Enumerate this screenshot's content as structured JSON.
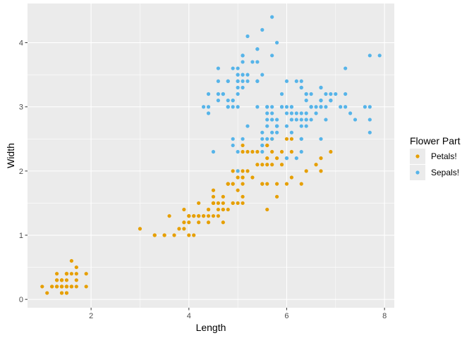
{
  "chart_data": {
    "type": "scatter",
    "xlabel": "Length",
    "ylabel": "Width",
    "xlim": [
      0.7,
      8.2
    ],
    "ylim": [
      -0.13,
      4.61
    ],
    "x_ticks": [
      2,
      4,
      6,
      8
    ],
    "y_ticks": [
      0,
      1,
      2,
      3,
      4
    ],
    "grid": true,
    "legend_position": "right",
    "legend_title": "Flower Part",
    "panel_background": "#ebebeb",
    "series": [
      {
        "name": "Petals!",
        "color": "#E69F00",
        "points": [
          [
            1.4,
            0.2
          ],
          [
            1.4,
            0.2
          ],
          [
            1.3,
            0.2
          ],
          [
            1.5,
            0.2
          ],
          [
            1.4,
            0.2
          ],
          [
            1.7,
            0.4
          ],
          [
            1.4,
            0.3
          ],
          [
            1.5,
            0.2
          ],
          [
            1.4,
            0.2
          ],
          [
            1.5,
            0.1
          ],
          [
            1.5,
            0.2
          ],
          [
            1.6,
            0.2
          ],
          [
            1.4,
            0.1
          ],
          [
            1.1,
            0.1
          ],
          [
            1.2,
            0.2
          ],
          [
            1.5,
            0.4
          ],
          [
            1.3,
            0.4
          ],
          [
            1.4,
            0.3
          ],
          [
            1.7,
            0.3
          ],
          [
            1.5,
            0.3
          ],
          [
            1.7,
            0.2
          ],
          [
            1.5,
            0.4
          ],
          [
            1.0,
            0.2
          ],
          [
            1.7,
            0.5
          ],
          [
            1.9,
            0.2
          ],
          [
            1.6,
            0.2
          ],
          [
            1.6,
            0.4
          ],
          [
            1.5,
            0.2
          ],
          [
            1.4,
            0.2
          ],
          [
            1.6,
            0.2
          ],
          [
            1.6,
            0.2
          ],
          [
            1.5,
            0.4
          ],
          [
            1.5,
            0.1
          ],
          [
            1.4,
            0.2
          ],
          [
            1.5,
            0.2
          ],
          [
            1.2,
            0.2
          ],
          [
            1.3,
            0.2
          ],
          [
            1.4,
            0.1
          ],
          [
            1.3,
            0.2
          ],
          [
            1.5,
            0.2
          ],
          [
            1.3,
            0.3
          ],
          [
            1.3,
            0.3
          ],
          [
            1.3,
            0.2
          ],
          [
            1.6,
            0.6
          ],
          [
            1.9,
            0.4
          ],
          [
            1.4,
            0.3
          ],
          [
            1.6,
            0.2
          ],
          [
            1.4,
            0.2
          ],
          [
            1.5,
            0.2
          ],
          [
            1.4,
            0.2
          ],
          [
            4.7,
            1.4
          ],
          [
            4.5,
            1.5
          ],
          [
            4.9,
            1.5
          ],
          [
            4.0,
            1.3
          ],
          [
            4.6,
            1.5
          ],
          [
            4.5,
            1.3
          ],
          [
            4.7,
            1.6
          ],
          [
            3.3,
            1.0
          ],
          [
            4.6,
            1.3
          ],
          [
            3.9,
            1.4
          ],
          [
            3.5,
            1.0
          ],
          [
            4.2,
            1.5
          ],
          [
            4.0,
            1.0
          ],
          [
            4.7,
            1.4
          ],
          [
            3.6,
            1.3
          ],
          [
            4.4,
            1.4
          ],
          [
            4.5,
            1.5
          ],
          [
            4.1,
            1.0
          ],
          [
            4.5,
            1.5
          ],
          [
            3.9,
            1.1
          ],
          [
            4.8,
            1.8
          ],
          [
            4.0,
            1.3
          ],
          [
            4.9,
            1.5
          ],
          [
            4.7,
            1.2
          ],
          [
            4.3,
            1.3
          ],
          [
            4.4,
            1.4
          ],
          [
            4.8,
            1.4
          ],
          [
            5.0,
            1.7
          ],
          [
            4.5,
            1.5
          ],
          [
            3.5,
            1.0
          ],
          [
            3.8,
            1.1
          ],
          [
            3.7,
            1.0
          ],
          [
            3.9,
            1.2
          ],
          [
            5.1,
            1.6
          ],
          [
            4.5,
            1.5
          ],
          [
            4.5,
            1.6
          ],
          [
            4.7,
            1.5
          ],
          [
            4.4,
            1.3
          ],
          [
            4.1,
            1.3
          ],
          [
            4.0,
            1.3
          ],
          [
            4.4,
            1.2
          ],
          [
            4.6,
            1.4
          ],
          [
            4.0,
            1.2
          ],
          [
            3.3,
            1.0
          ],
          [
            4.2,
            1.3
          ],
          [
            4.2,
            1.2
          ],
          [
            4.2,
            1.3
          ],
          [
            4.3,
            1.3
          ],
          [
            3.0,
            1.1
          ],
          [
            4.1,
            1.3
          ],
          [
            6.0,
            2.5
          ],
          [
            5.1,
            1.9
          ],
          [
            5.9,
            2.1
          ],
          [
            5.6,
            1.8
          ],
          [
            5.8,
            2.2
          ],
          [
            6.6,
            2.1
          ],
          [
            4.5,
            1.7
          ],
          [
            6.3,
            1.8
          ],
          [
            5.8,
            1.8
          ],
          [
            6.1,
            2.5
          ],
          [
            5.1,
            2.0
          ],
          [
            5.3,
            1.9
          ],
          [
            5.5,
            2.1
          ],
          [
            5.0,
            2.0
          ],
          [
            5.1,
            2.4
          ],
          [
            5.3,
            2.3
          ],
          [
            5.5,
            1.8
          ],
          [
            6.7,
            2.2
          ],
          [
            6.9,
            2.3
          ],
          [
            5.0,
            1.5
          ],
          [
            5.7,
            2.3
          ],
          [
            4.9,
            2.0
          ],
          [
            6.7,
            2.0
          ],
          [
            4.9,
            1.8
          ],
          [
            5.7,
            2.1
          ],
          [
            6.0,
            1.8
          ],
          [
            4.8,
            1.8
          ],
          [
            4.9,
            1.8
          ],
          [
            5.6,
            2.1
          ],
          [
            5.8,
            1.6
          ],
          [
            6.1,
            1.9
          ],
          [
            6.4,
            2.0
          ],
          [
            5.6,
            2.2
          ],
          [
            5.1,
            1.5
          ],
          [
            5.6,
            1.4
          ],
          [
            6.1,
            2.3
          ],
          [
            5.6,
            2.4
          ],
          [
            5.5,
            1.8
          ],
          [
            4.8,
            1.8
          ],
          [
            5.4,
            2.1
          ],
          [
            5.6,
            2.4
          ],
          [
            5.1,
            2.3
          ],
          [
            5.1,
            1.9
          ],
          [
            5.9,
            2.3
          ],
          [
            5.7,
            2.5
          ],
          [
            5.2,
            2.3
          ],
          [
            5.0,
            1.9
          ],
          [
            5.2,
            2.0
          ],
          [
            5.4,
            2.3
          ],
          [
            5.1,
            1.8
          ]
        ]
      },
      {
        "name": "Sepals!",
        "color": "#56B4E9",
        "points": [
          [
            5.1,
            3.5
          ],
          [
            4.9,
            3.0
          ],
          [
            4.7,
            3.2
          ],
          [
            4.6,
            3.1
          ],
          [
            5.0,
            3.6
          ],
          [
            5.4,
            3.9
          ],
          [
            4.6,
            3.4
          ],
          [
            5.0,
            3.4
          ],
          [
            4.4,
            2.9
          ],
          [
            4.9,
            3.1
          ],
          [
            5.4,
            3.7
          ],
          [
            4.8,
            3.4
          ],
          [
            4.8,
            3.0
          ],
          [
            4.3,
            3.0
          ],
          [
            5.8,
            4.0
          ],
          [
            5.7,
            4.4
          ],
          [
            5.4,
            3.9
          ],
          [
            5.1,
            3.5
          ],
          [
            5.7,
            3.8
          ],
          [
            5.1,
            3.8
          ],
          [
            5.4,
            3.4
          ],
          [
            5.1,
            3.7
          ],
          [
            4.6,
            3.6
          ],
          [
            5.1,
            3.3
          ],
          [
            4.8,
            3.4
          ],
          [
            5.0,
            3.0
          ],
          [
            5.0,
            3.4
          ],
          [
            5.2,
            3.5
          ],
          [
            5.2,
            3.4
          ],
          [
            4.7,
            3.2
          ],
          [
            4.8,
            3.1
          ],
          [
            5.4,
            3.4
          ],
          [
            5.2,
            4.1
          ],
          [
            5.5,
            4.2
          ],
          [
            4.9,
            3.1
          ],
          [
            5.0,
            3.2
          ],
          [
            5.5,
            3.5
          ],
          [
            4.9,
            3.6
          ],
          [
            4.4,
            3.0
          ],
          [
            5.1,
            3.4
          ],
          [
            5.0,
            3.5
          ],
          [
            4.5,
            2.3
          ],
          [
            4.4,
            3.2
          ],
          [
            5.0,
            3.5
          ],
          [
            5.1,
            3.8
          ],
          [
            4.8,
            3.0
          ],
          [
            5.1,
            3.8
          ],
          [
            4.6,
            3.2
          ],
          [
            5.3,
            3.7
          ],
          [
            5.0,
            3.3
          ],
          [
            7.0,
            3.2
          ],
          [
            6.4,
            3.2
          ],
          [
            6.9,
            3.1
          ],
          [
            5.5,
            2.3
          ],
          [
            6.5,
            2.8
          ],
          [
            5.7,
            2.8
          ],
          [
            6.3,
            3.3
          ],
          [
            4.9,
            2.4
          ],
          [
            6.6,
            2.9
          ],
          [
            5.2,
            2.7
          ],
          [
            5.0,
            2.0
          ],
          [
            5.9,
            3.0
          ],
          [
            6.0,
            2.2
          ],
          [
            6.1,
            2.9
          ],
          [
            5.6,
            2.9
          ],
          [
            6.7,
            3.1
          ],
          [
            5.6,
            3.0
          ],
          [
            5.8,
            2.7
          ],
          [
            6.2,
            2.2
          ],
          [
            5.6,
            2.5
          ],
          [
            5.9,
            3.2
          ],
          [
            6.1,
            2.8
          ],
          [
            6.3,
            2.5
          ],
          [
            6.1,
            2.8
          ],
          [
            6.4,
            2.9
          ],
          [
            6.6,
            3.0
          ],
          [
            6.8,
            2.8
          ],
          [
            6.7,
            3.0
          ],
          [
            6.0,
            2.9
          ],
          [
            5.7,
            2.6
          ],
          [
            5.5,
            2.4
          ],
          [
            5.5,
            2.4
          ],
          [
            5.8,
            2.7
          ],
          [
            6.0,
            2.7
          ],
          [
            5.4,
            3.0
          ],
          [
            6.0,
            3.4
          ],
          [
            6.7,
            3.1
          ],
          [
            6.3,
            2.3
          ],
          [
            5.6,
            3.0
          ],
          [
            5.5,
            2.5
          ],
          [
            5.5,
            2.6
          ],
          [
            6.1,
            3.0
          ],
          [
            5.8,
            2.6
          ],
          [
            5.0,
            2.3
          ],
          [
            5.6,
            2.7
          ],
          [
            5.7,
            3.0
          ],
          [
            5.7,
            2.9
          ],
          [
            6.2,
            2.9
          ],
          [
            5.1,
            2.5
          ],
          [
            5.7,
            2.8
          ],
          [
            6.3,
            3.3
          ],
          [
            5.8,
            2.7
          ],
          [
            7.1,
            3.0
          ],
          [
            6.3,
            2.9
          ],
          [
            6.5,
            3.0
          ],
          [
            7.6,
            3.0
          ],
          [
            4.9,
            2.5
          ],
          [
            7.3,
            2.9
          ],
          [
            6.7,
            2.5
          ],
          [
            7.2,
            3.6
          ],
          [
            6.5,
            3.2
          ],
          [
            6.4,
            2.7
          ],
          [
            6.8,
            3.0
          ],
          [
            5.7,
            2.5
          ],
          [
            5.8,
            2.8
          ],
          [
            6.4,
            3.2
          ],
          [
            6.5,
            3.0
          ],
          [
            7.7,
            3.8
          ],
          [
            7.7,
            2.6
          ],
          [
            6.0,
            2.2
          ],
          [
            6.9,
            3.2
          ],
          [
            5.6,
            2.8
          ],
          [
            7.7,
            2.8
          ],
          [
            6.3,
            2.7
          ],
          [
            6.7,
            3.3
          ],
          [
            7.2,
            3.2
          ],
          [
            6.2,
            2.8
          ],
          [
            6.1,
            3.0
          ],
          [
            6.4,
            2.8
          ],
          [
            7.2,
            3.0
          ],
          [
            7.4,
            2.8
          ],
          [
            7.9,
            3.8
          ],
          [
            6.4,
            2.8
          ],
          [
            6.3,
            2.8
          ],
          [
            6.1,
            2.6
          ],
          [
            7.7,
            3.0
          ],
          [
            6.3,
            3.4
          ],
          [
            6.4,
            3.1
          ],
          [
            6.0,
            3.0
          ],
          [
            6.9,
            3.1
          ],
          [
            6.7,
            3.1
          ],
          [
            6.9,
            3.1
          ],
          [
            5.8,
            2.7
          ],
          [
            6.8,
            3.2
          ],
          [
            6.7,
            3.3
          ],
          [
            6.7,
            3.0
          ],
          [
            6.3,
            2.5
          ],
          [
            6.5,
            3.0
          ],
          [
            6.2,
            3.4
          ],
          [
            5.9,
            3.0
          ]
        ]
      }
    ]
  }
}
